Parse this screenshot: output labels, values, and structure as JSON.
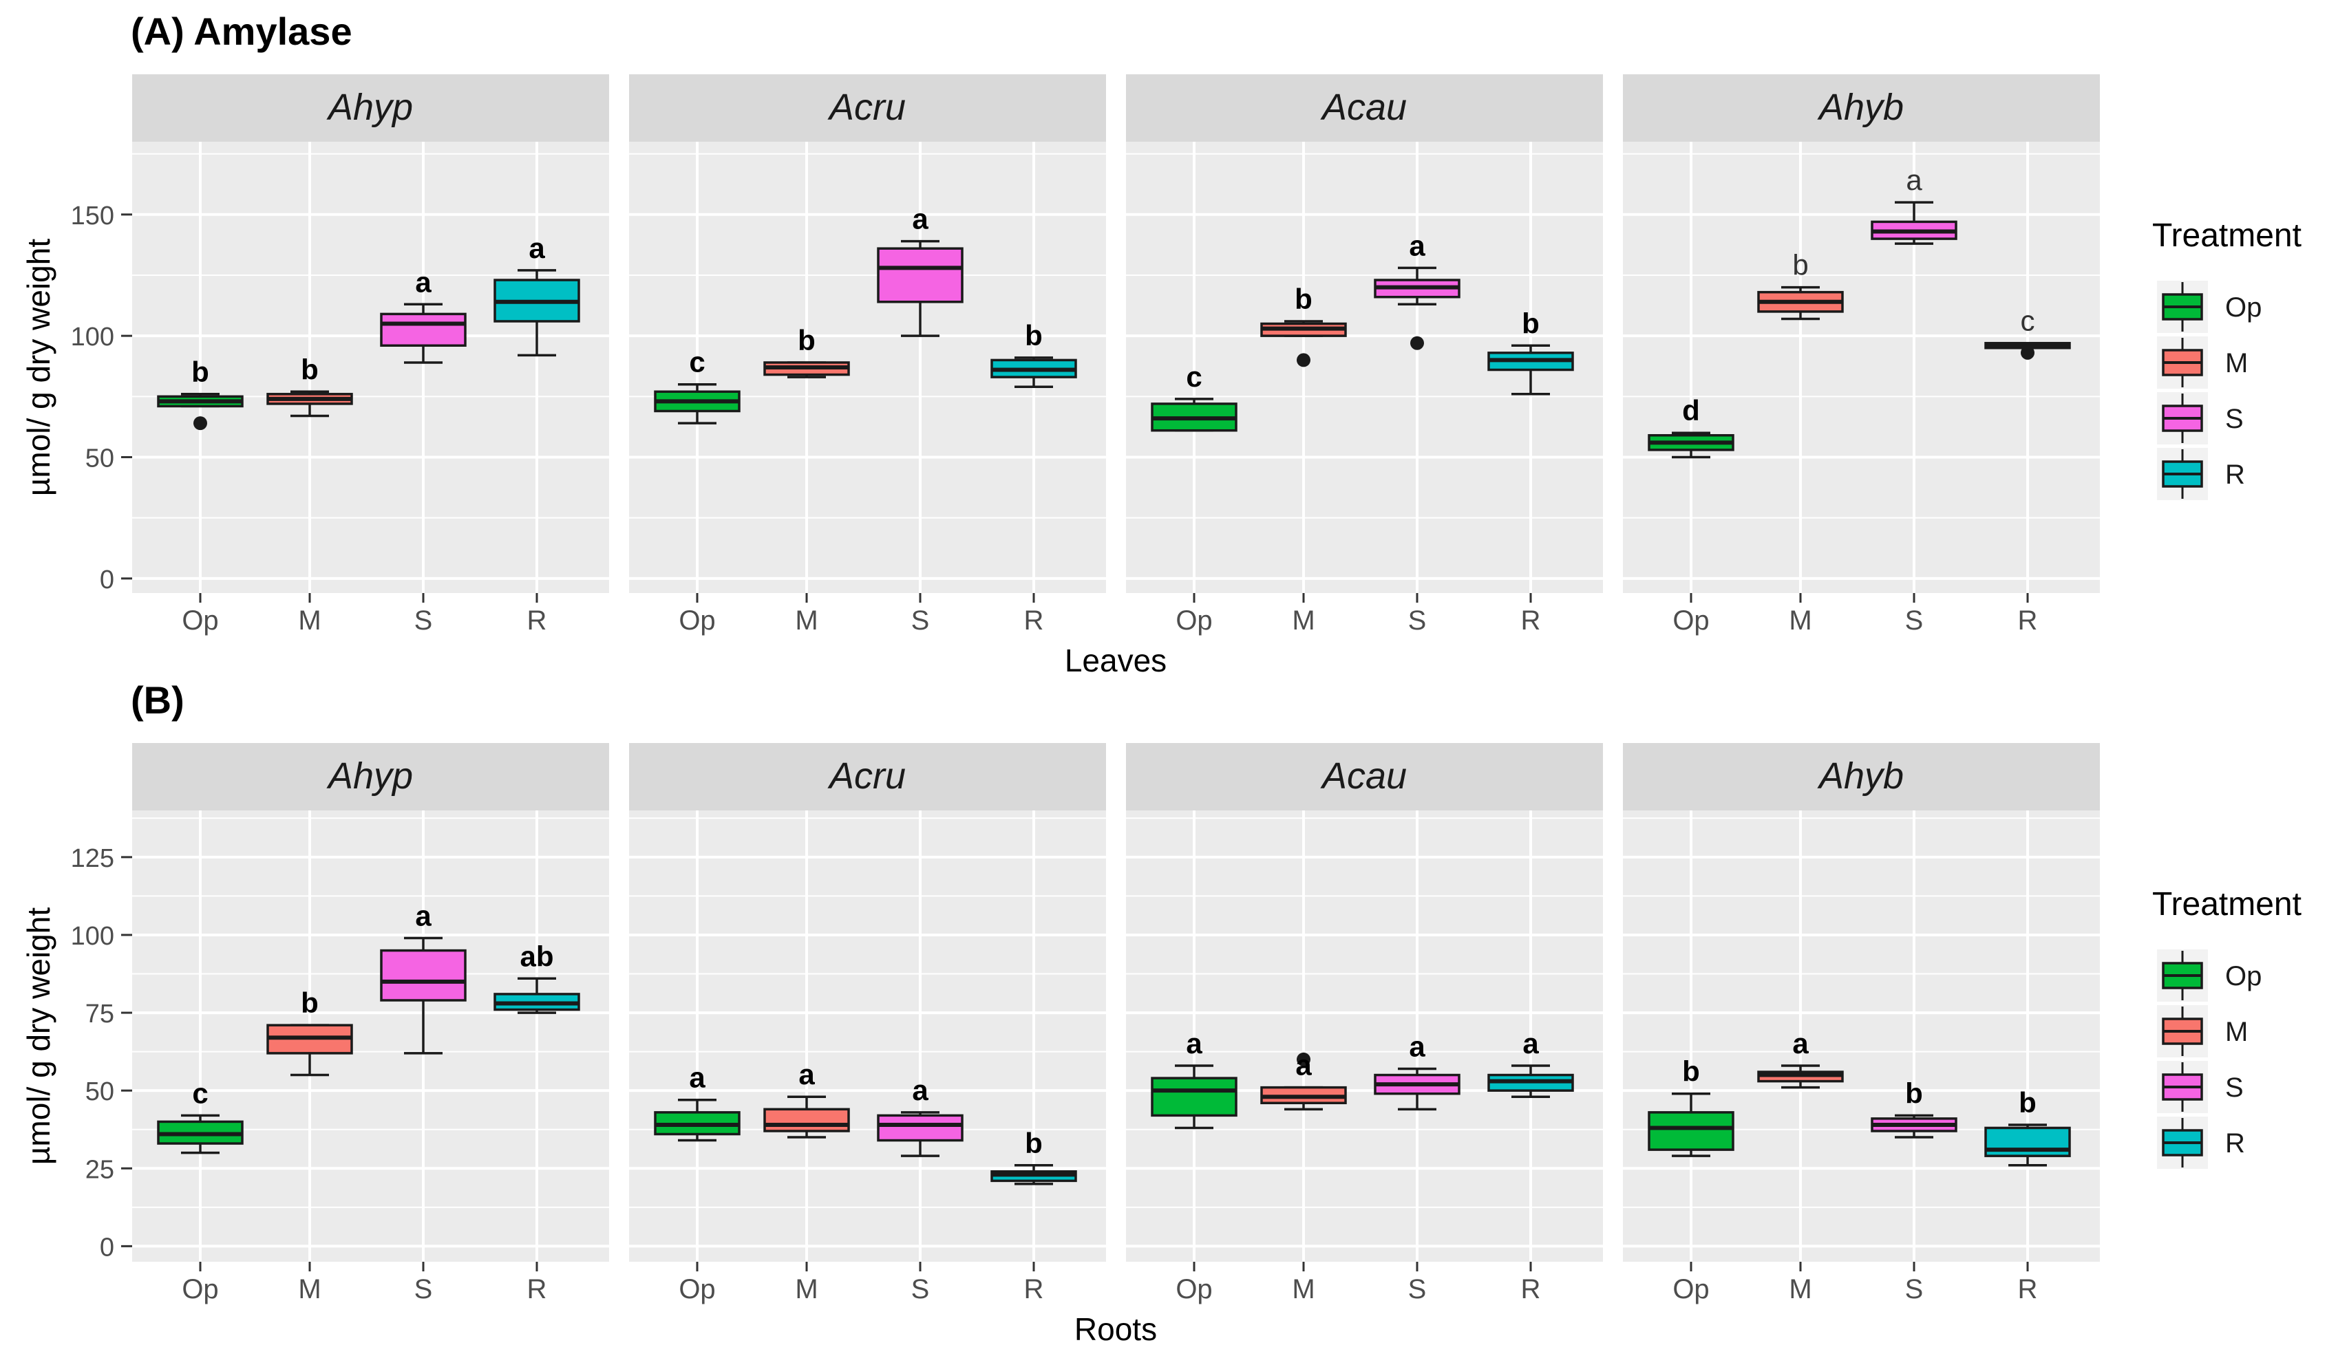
{
  "figure": {
    "colors": {
      "Op": "#00BA38",
      "M": "#F8766D",
      "S": "#F564E3",
      "R": "#00BFC4",
      "panel_bg": "#EBEBEB",
      "strip_bg": "#D9D9D9",
      "grid": "#FFFFFF"
    }
  },
  "chart_data": [
    {
      "type": "boxplot",
      "title": "(A) Amylase",
      "xlabel": "Leaves",
      "ylabel": "µmol/ g dry weight",
      "ylim": [
        -6,
        180
      ],
      "yticks": [
        0,
        50,
        100,
        150
      ],
      "categories": [
        "Op",
        "M",
        "S",
        "R"
      ],
      "legend": {
        "title": "Treatment",
        "position": "right",
        "entries": [
          "Op",
          "M",
          "S",
          "R"
        ]
      },
      "grid": true,
      "facets": [
        {
          "name": "Ahyp",
          "groups": [
            {
              "cat": "Op",
              "min": 71,
              "q1": 71,
              "median": 73,
              "q3": 75,
              "max": 76,
              "outliers": [
                64
              ],
              "letter": "b",
              "bold": true
            },
            {
              "cat": "M",
              "min": 67,
              "q1": 72,
              "median": 74,
              "q3": 76,
              "max": 77,
              "outliers": [],
              "letter": "b",
              "bold": true
            },
            {
              "cat": "S",
              "min": 89,
              "q1": 96,
              "median": 105,
              "q3": 109,
              "max": 113,
              "outliers": [],
              "letter": "a",
              "bold": true
            },
            {
              "cat": "R",
              "min": 92,
              "q1": 106,
              "median": 114,
              "q3": 123,
              "max": 127,
              "outliers": [],
              "letter": "a",
              "bold": true
            }
          ]
        },
        {
          "name": "Acru",
          "groups": [
            {
              "cat": "Op",
              "min": 64,
              "q1": 69,
              "median": 73,
              "q3": 77,
              "max": 80,
              "outliers": [],
              "letter": "c",
              "bold": true
            },
            {
              "cat": "M",
              "min": 83,
              "q1": 84,
              "median": 87,
              "q3": 89,
              "max": 89,
              "outliers": [],
              "letter": "b",
              "bold": true
            },
            {
              "cat": "S",
              "min": 100,
              "q1": 114,
              "median": 128,
              "q3": 136,
              "max": 139,
              "outliers": [],
              "letter": "a",
              "bold": true
            },
            {
              "cat": "R",
              "min": 79,
              "q1": 83,
              "median": 86,
              "q3": 90,
              "max": 91,
              "outliers": [],
              "letter": "b",
              "bold": true
            }
          ]
        },
        {
          "name": "Acau",
          "groups": [
            {
              "cat": "Op",
              "min": 61,
              "q1": 61,
              "median": 66,
              "q3": 72,
              "max": 74,
              "outliers": [],
              "letter": "c",
              "bold": true
            },
            {
              "cat": "M",
              "min": 100,
              "q1": 100,
              "median": 103,
              "q3": 105,
              "max": 106,
              "outliers": [
                90
              ],
              "letter": "b",
              "bold": true
            },
            {
              "cat": "S",
              "min": 113,
              "q1": 116,
              "median": 120,
              "q3": 123,
              "max": 128,
              "outliers": [
                97
              ],
              "letter": "a",
              "bold": true
            },
            {
              "cat": "R",
              "min": 76,
              "q1": 86,
              "median": 90,
              "q3": 93,
              "max": 96,
              "outliers": [],
              "letter": "b",
              "bold": true
            }
          ]
        },
        {
          "name": "Ahyb",
          "groups": [
            {
              "cat": "Op",
              "min": 50,
              "q1": 53,
              "median": 56,
              "q3": 59,
              "max": 60,
              "outliers": [],
              "letter": "d",
              "bold": true
            },
            {
              "cat": "M",
              "min": 107,
              "q1": 110,
              "median": 114,
              "q3": 118,
              "max": 120,
              "outliers": [],
              "letter": "b",
              "bold": false
            },
            {
              "cat": "S",
              "min": 138,
              "q1": 140,
              "median": 143,
              "q3": 147,
              "max": 155,
              "outliers": [],
              "letter": "a",
              "bold": false
            },
            {
              "cat": "R",
              "min": 95,
              "q1": 95,
              "median": 96,
              "q3": 97,
              "max": 97,
              "outliers": [
                93
              ],
              "letter": "c",
              "bold": false
            }
          ]
        }
      ]
    },
    {
      "type": "boxplot",
      "title": "(B)",
      "xlabel": "Roots",
      "ylabel": "µmol/ g dry weight",
      "ylim": [
        -5,
        140
      ],
      "yticks": [
        0,
        25,
        50,
        75,
        100,
        125
      ],
      "categories": [
        "Op",
        "M",
        "S",
        "R"
      ],
      "legend": {
        "title": "Treatment",
        "position": "right",
        "entries": [
          "Op",
          "M",
          "S",
          "R"
        ]
      },
      "grid": true,
      "facets": [
        {
          "name": "Ahyp",
          "groups": [
            {
              "cat": "Op",
              "min": 30,
              "q1": 33,
              "median": 36,
              "q3": 40,
              "max": 42,
              "outliers": [],
              "letter": "c",
              "bold": true
            },
            {
              "cat": "M",
              "min": 55,
              "q1": 62,
              "median": 67,
              "q3": 71,
              "max": 71,
              "outliers": [],
              "letter": "b",
              "bold": true
            },
            {
              "cat": "S",
              "min": 62,
              "q1": 79,
              "median": 85,
              "q3": 95,
              "max": 99,
              "outliers": [],
              "letter": "a",
              "bold": true
            },
            {
              "cat": "R",
              "min": 75,
              "q1": 76,
              "median": 78,
              "q3": 81,
              "max": 86,
              "outliers": [],
              "letter": "ab",
              "bold": true
            }
          ]
        },
        {
          "name": "Acru",
          "groups": [
            {
              "cat": "Op",
              "min": 34,
              "q1": 36,
              "median": 39,
              "q3": 43,
              "max": 47,
              "outliers": [],
              "letter": "a",
              "bold": true
            },
            {
              "cat": "M",
              "min": 35,
              "q1": 37,
              "median": 39,
              "q3": 44,
              "max": 48,
              "outliers": [],
              "letter": "a",
              "bold": true
            },
            {
              "cat": "S",
              "min": 29,
              "q1": 34,
              "median": 39,
              "q3": 42,
              "max": 43,
              "outliers": [],
              "letter": "a",
              "bold": true
            },
            {
              "cat": "R",
              "min": 20,
              "q1": 21,
              "median": 23,
              "q3": 24,
              "max": 26,
              "outliers": [],
              "letter": "b",
              "bold": true
            }
          ]
        },
        {
          "name": "Acau",
          "groups": [
            {
              "cat": "Op",
              "min": 38,
              "q1": 42,
              "median": 50,
              "q3": 54,
              "max": 58,
              "outliers": [],
              "letter": "a",
              "bold": true
            },
            {
              "cat": "M",
              "min": 44,
              "q1": 46,
              "median": 48,
              "q3": 51,
              "max": 51,
              "outliers": [
                60
              ],
              "letter": "a",
              "bold": true
            },
            {
              "cat": "S",
              "min": 44,
              "q1": 49,
              "median": 52,
              "q3": 55,
              "max": 57,
              "outliers": [],
              "letter": "a",
              "bold": true
            },
            {
              "cat": "R",
              "min": 48,
              "q1": 50,
              "median": 53,
              "q3": 55,
              "max": 58,
              "outliers": [],
              "letter": "a",
              "bold": true
            }
          ]
        },
        {
          "name": "Ahyb",
          "groups": [
            {
              "cat": "Op",
              "min": 29,
              "q1": 31,
              "median": 38,
              "q3": 43,
              "max": 49,
              "outliers": [],
              "letter": "b",
              "bold": true
            },
            {
              "cat": "M",
              "min": 51,
              "q1": 53,
              "median": 55,
              "q3": 56,
              "max": 58,
              "outliers": [],
              "letter": "a",
              "bold": true
            },
            {
              "cat": "S",
              "min": 35,
              "q1": 37,
              "median": 39,
              "q3": 41,
              "max": 42,
              "outliers": [],
              "letter": "b",
              "bold": true
            },
            {
              "cat": "R",
              "min": 26,
              "q1": 29,
              "median": 31,
              "q3": 38,
              "max": 39,
              "outliers": [],
              "letter": "b",
              "bold": true
            }
          ]
        }
      ]
    }
  ]
}
